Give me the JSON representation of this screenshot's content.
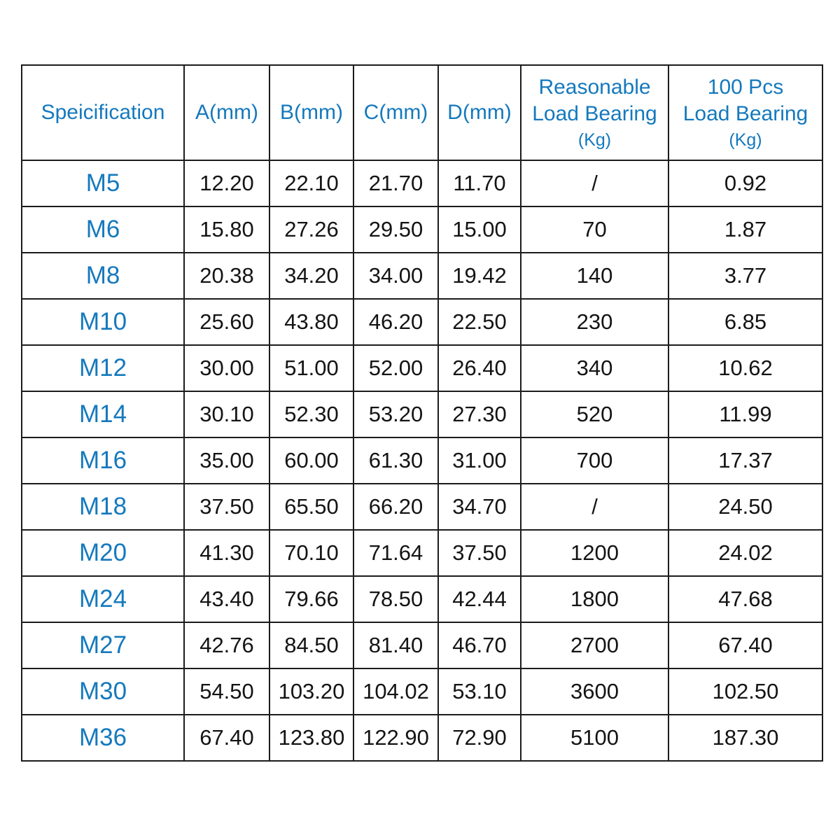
{
  "colors": {
    "accent_blue": "#1579bd",
    "text_black": "#141414",
    "border": "#1c1c1c",
    "background": "#ffffff"
  },
  "table": {
    "headers": {
      "specification": "Speicification",
      "a": "A(mm)",
      "b": "B(mm)",
      "c": "C(mm)",
      "d": "D(mm)",
      "reasonable_main": "Reasonable\nLoad Bearing",
      "reasonable_sub": "(Kg)",
      "pcs100_main": "100 Pcs\nLoad Bearing",
      "pcs100_sub": "(Kg)"
    },
    "rows": [
      [
        "M5",
        "12.20",
        "22.10",
        "21.70",
        "11.70",
        "/",
        "0.92"
      ],
      [
        "M6",
        "15.80",
        "27.26",
        "29.50",
        "15.00",
        "70",
        "1.87"
      ],
      [
        "M8",
        "20.38",
        "34.20",
        "34.00",
        "19.42",
        "140",
        "3.77"
      ],
      [
        "M10",
        "25.60",
        "43.80",
        "46.20",
        "22.50",
        "230",
        "6.85"
      ],
      [
        "M12",
        "30.00",
        "51.00",
        "52.00",
        "26.40",
        "340",
        "10.62"
      ],
      [
        "M14",
        "30.10",
        "52.30",
        "53.20",
        "27.30",
        "520",
        "11.99"
      ],
      [
        "M16",
        "35.00",
        "60.00",
        "61.30",
        "31.00",
        "700",
        "17.37"
      ],
      [
        "M18",
        "37.50",
        "65.50",
        "66.20",
        "34.70",
        "/",
        "24.50"
      ],
      [
        "M20",
        "41.30",
        "70.10",
        "71.64",
        "37.50",
        "1200",
        "24.02"
      ],
      [
        "M24",
        "43.40",
        "79.66",
        "78.50",
        "42.44",
        "1800",
        "47.68"
      ],
      [
        "M27",
        "42.76",
        "84.50",
        "81.40",
        "46.70",
        "2700",
        "67.40"
      ],
      [
        "M30",
        "54.50",
        "103.20",
        "104.02",
        "53.10",
        "3600",
        "102.50"
      ],
      [
        "M36",
        "67.40",
        "123.80",
        "122.90",
        "72.90",
        "5100",
        "187.30"
      ]
    ]
  }
}
